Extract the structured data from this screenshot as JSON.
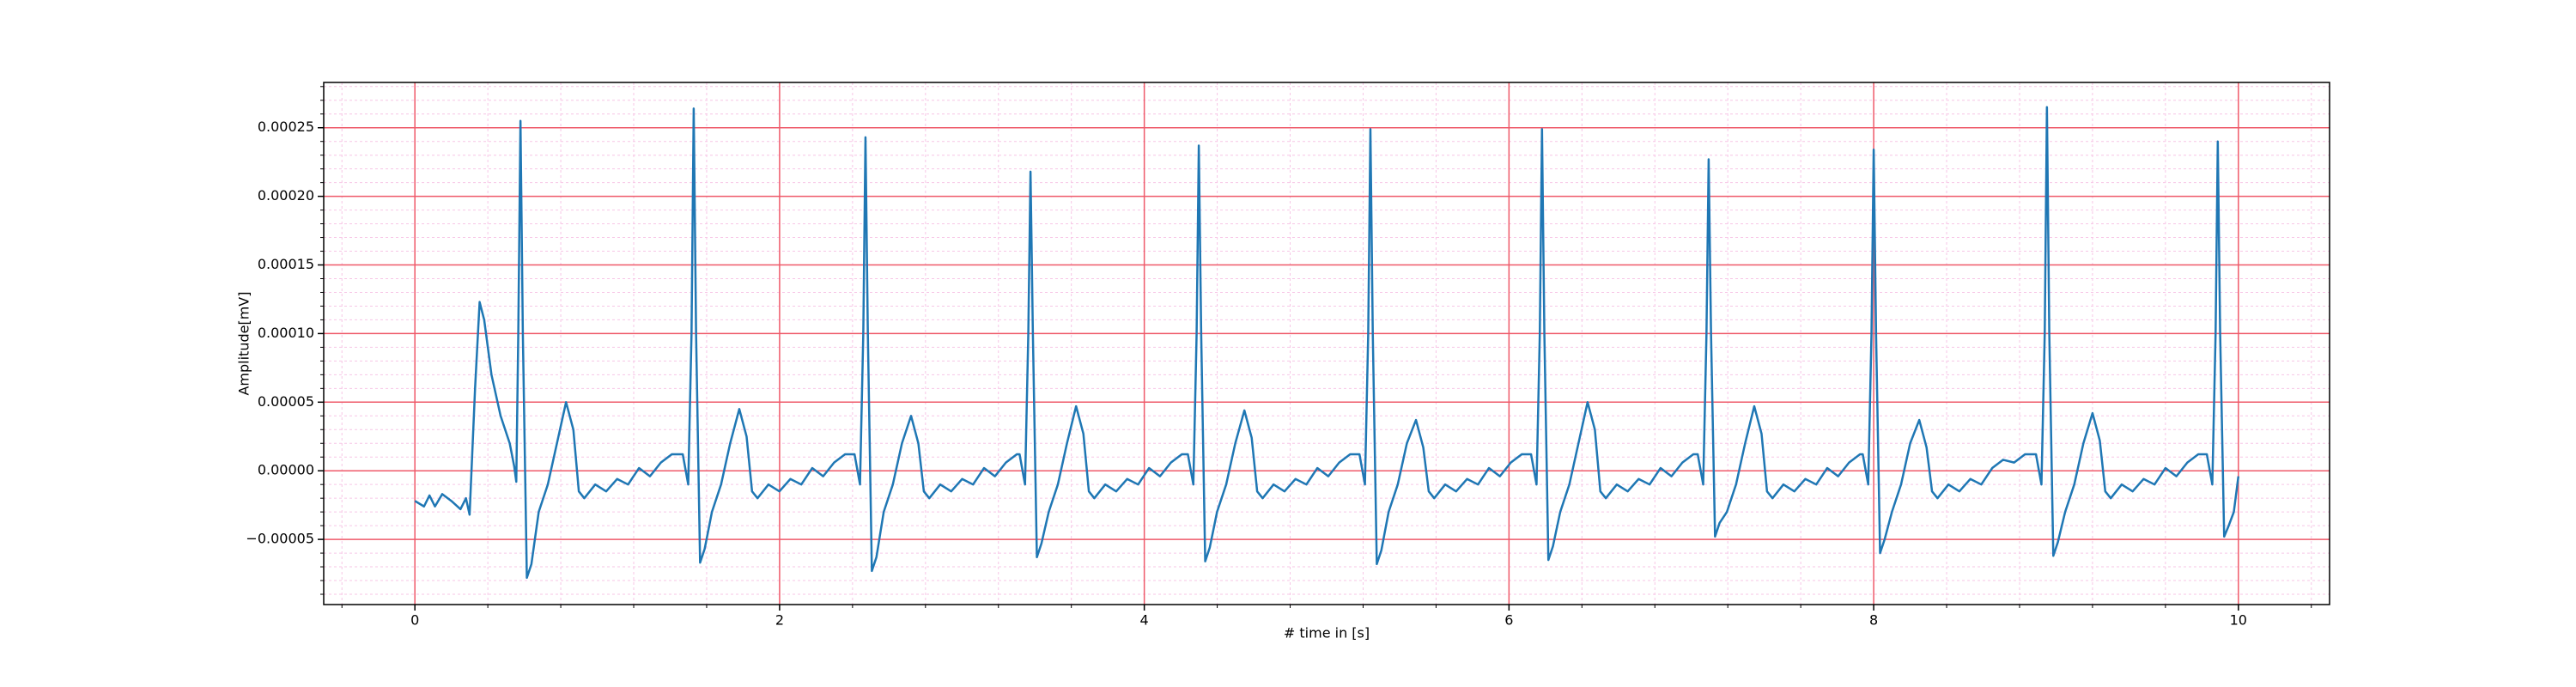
{
  "chart_data": {
    "type": "line",
    "xlabel": "# time in [s]",
    "ylabel": "Amplitude[mV]",
    "xlim": [
      -0.5,
      10.5
    ],
    "ylim": [
      -9.75e-05,
      0.000283
    ],
    "xticks": [
      0,
      2,
      4,
      6,
      8,
      10
    ],
    "yticks": [
      {
        "value": -5e-05,
        "label": "−0.00005"
      },
      {
        "value": 0,
        "label": "0.00000"
      },
      {
        "value": 5e-05,
        "label": "0.00005"
      },
      {
        "value": 0.0001,
        "label": "0.00010"
      },
      {
        "value": 0.00015,
        "label": "0.00015"
      },
      {
        "value": 0.0002,
        "label": "0.00020"
      },
      {
        "value": 0.00025,
        "label": "0.00025"
      }
    ],
    "grid": true,
    "minor_grid": true,
    "grid_color": "#ef5a6a",
    "minor_grid_color": "#f7c6e6",
    "series": [
      {
        "color": "#1f77b4",
        "x": [
          0.0,
          0.05,
          0.08,
          0.11,
          0.15,
          0.2,
          0.25,
          0.28,
          0.3,
          0.33,
          0.355,
          0.38,
          0.42,
          0.47,
          0.52,
          0.545,
          0.556,
          0.567,
          0.579,
          0.592,
          0.614,
          0.639,
          0.679,
          0.729,
          0.779,
          0.829,
          0.869,
          0.899,
          0.929,
          0.989,
          1.049,
          1.109,
          1.169,
          1.229,
          1.289,
          1.349,
          1.409,
          1.469,
          1.499,
          1.517,
          1.529,
          1.542,
          1.564,
          1.589,
          1.629,
          1.679,
          1.729,
          1.779,
          1.819,
          1.849,
          1.879,
          1.939,
          1.999,
          2.059,
          2.119,
          2.179,
          2.239,
          2.299,
          2.359,
          2.411,
          2.441,
          2.459,
          2.471,
          2.484,
          2.506,
          2.531,
          2.571,
          2.621,
          2.671,
          2.721,
          2.761,
          2.791,
          2.821,
          2.881,
          2.941,
          3.001,
          3.061,
          3.121,
          3.181,
          3.241,
          3.301,
          3.316,
          3.346,
          3.364,
          3.376,
          3.389,
          3.411,
          3.436,
          3.476,
          3.526,
          3.576,
          3.626,
          3.666,
          3.696,
          3.726,
          3.786,
          3.846,
          3.906,
          3.966,
          4.026,
          4.086,
          4.146,
          4.206,
          4.239,
          4.269,
          4.287,
          4.299,
          4.312,
          4.334,
          4.359,
          4.399,
          4.449,
          4.499,
          4.549,
          4.589,
          4.619,
          4.649,
          4.709,
          4.769,
          4.829,
          4.889,
          4.949,
          5.009,
          5.069,
          5.129,
          5.18,
          5.21,
          5.228,
          5.24,
          5.253,
          5.275,
          5.3,
          5.34,
          5.39,
          5.44,
          5.49,
          5.53,
          5.56,
          5.59,
          5.65,
          5.71,
          5.77,
          5.83,
          5.89,
          5.95,
          6.01,
          6.07,
          6.121,
          6.151,
          6.169,
          6.181,
          6.194,
          6.216,
          6.241,
          6.281,
          6.331,
          6.381,
          6.431,
          6.471,
          6.501,
          6.531,
          6.591,
          6.651,
          6.711,
          6.771,
          6.831,
          6.891,
          6.951,
          7.011,
          7.035,
          7.065,
          7.083,
          7.095,
          7.108,
          7.13,
          7.155,
          7.195,
          7.245,
          7.295,
          7.345,
          7.385,
          7.415,
          7.445,
          7.505,
          7.565,
          7.625,
          7.685,
          7.745,
          7.805,
          7.865,
          7.925,
          7.94,
          7.97,
          7.988,
          8.0,
          8.013,
          8.035,
          8.06,
          8.1,
          8.15,
          8.2,
          8.25,
          8.29,
          8.32,
          8.35,
          8.41,
          8.47,
          8.53,
          8.59,
          8.65,
          8.71,
          8.77,
          8.83,
          8.89,
          8.92,
          8.938,
          8.95,
          8.963,
          8.985,
          9.01,
          9.05,
          9.1,
          9.15,
          9.2,
          9.24,
          9.27,
          9.3,
          9.36,
          9.42,
          9.48,
          9.54,
          9.6,
          9.66,
          9.72,
          9.78,
          9.827,
          9.857,
          9.875,
          9.887,
          9.9,
          9.922,
          9.947,
          9.975,
          10.0
        ],
        "values": [
          -2.2e-05,
          -2.6e-05,
          -1.8e-05,
          -2.6e-05,
          -1.7e-05,
          -2.2e-05,
          -2.8e-05,
          -2e-05,
          -3.2e-05,
          6e-05,
          0.000123,
          0.00011,
          7e-05,
          4e-05,
          2e-05,
          3e-06,
          -8e-06,
          0.0001,
          0.000255,
          0.0001,
          -7.8e-05,
          -6.8e-05,
          -3e-05,
          -1e-05,
          2e-05,
          5e-05,
          3e-05,
          -1.5e-05,
          -2e-05,
          -1e-05,
          -1.5e-05,
          -6e-06,
          -1e-05,
          2e-06,
          -4e-06,
          6e-06,
          1.2e-05,
          1.2e-05,
          -1e-05,
          0.0001,
          0.000264,
          0.0001,
          -6.7e-05,
          -5.7e-05,
          -3e-05,
          -1e-05,
          2e-05,
          4.5e-05,
          2.5e-05,
          -1.5e-05,
          -2e-05,
          -1e-05,
          -1.5e-05,
          -6e-06,
          -1e-05,
          2e-06,
          -4e-06,
          6e-06,
          1.2e-05,
          1.2e-05,
          -1e-05,
          0.0001,
          0.000243,
          0.0001,
          -7.3e-05,
          -6.3e-05,
          -3e-05,
          -1e-05,
          2e-05,
          4e-05,
          2e-05,
          -1.5e-05,
          -2e-05,
          -1e-05,
          -1.5e-05,
          -6e-06,
          -1e-05,
          2e-06,
          -4e-06,
          6e-06,
          1.2e-05,
          1.2e-05,
          -1e-05,
          0.0001,
          0.000218,
          0.0001,
          -6.3e-05,
          -5.3e-05,
          -3e-05,
          -1e-05,
          2e-05,
          4.7e-05,
          2.7e-05,
          -1.5e-05,
          -2e-05,
          -1e-05,
          -1.5e-05,
          -6e-06,
          -1e-05,
          2e-06,
          -4e-06,
          6e-06,
          1.2e-05,
          1.2e-05,
          -1e-05,
          0.0001,
          0.000237,
          0.0001,
          -6.6e-05,
          -5.6e-05,
          -3e-05,
          -1e-05,
          2e-05,
          4.4e-05,
          2.4e-05,
          -1.5e-05,
          -2e-05,
          -1e-05,
          -1.5e-05,
          -6e-06,
          -1e-05,
          2e-06,
          -4e-06,
          6e-06,
          1.2e-05,
          1.2e-05,
          -1e-05,
          0.0001,
          0.000249,
          0.0001,
          -6.8e-05,
          -5.8e-05,
          -3e-05,
          -1e-05,
          2e-05,
          3.7e-05,
          1.7e-05,
          -1.5e-05,
          -2e-05,
          -1e-05,
          -1.5e-05,
          -6e-06,
          -1e-05,
          2e-06,
          -4e-06,
          6e-06,
          1.2e-05,
          1.2e-05,
          -1e-05,
          0.0001,
          0.000249,
          0.0001,
          -6.5e-05,
          -5.5e-05,
          -3e-05,
          -1e-05,
          2e-05,
          5e-05,
          3e-05,
          -1.5e-05,
          -2e-05,
          -1e-05,
          -1.5e-05,
          -6e-06,
          -1e-05,
          2e-06,
          -4e-06,
          6e-06,
          1.2e-05,
          1.2e-05,
          -1e-05,
          0.0001,
          0.000227,
          0.0001,
          -4.8e-05,
          -3.8e-05,
          -3e-05,
          -1e-05,
          2e-05,
          4.7e-05,
          2.7e-05,
          -1.5e-05,
          -2e-05,
          -1e-05,
          -1.5e-05,
          -6e-06,
          -1e-05,
          2e-06,
          -4e-06,
          6e-06,
          1.2e-05,
          1.2e-05,
          -1e-05,
          0.0001,
          0.000234,
          0.0001,
          -6e-05,
          -5e-05,
          -3e-05,
          -1e-05,
          2e-05,
          3.7e-05,
          1.7e-05,
          -1.5e-05,
          -2e-05,
          -1e-05,
          -1.5e-05,
          -6e-06,
          -1e-05,
          2e-06,
          8e-06,
          6e-06,
          1.2e-05,
          1.2e-05,
          -1e-05,
          0.0001,
          0.000265,
          0.0001,
          -6.2e-05,
          -5.2e-05,
          -3e-05,
          -1e-05,
          2e-05,
          4.2e-05,
          2.2e-05,
          -1.5e-05,
          -2e-05,
          -1e-05,
          -1.5e-05,
          -6e-06,
          -1e-05,
          2e-06,
          -4e-06,
          6e-06,
          1.2e-05,
          1.2e-05,
          -1e-05,
          0.0001,
          0.00024,
          0.0001,
          -4.8e-05,
          -4e-05,
          -3e-05,
          -4e-06
        ]
      }
    ]
  }
}
